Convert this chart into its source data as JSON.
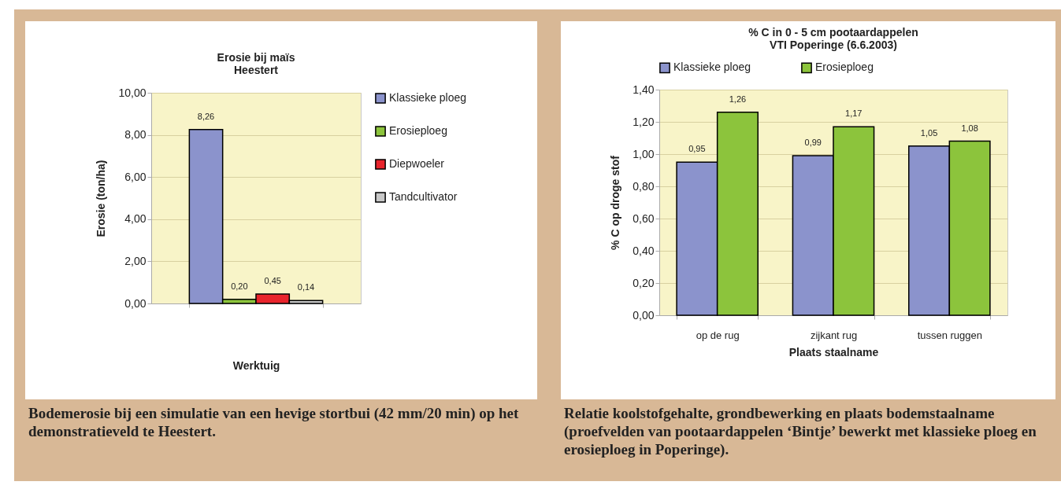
{
  "chart_data": [
    {
      "type": "bar",
      "title": "Erosie bij maïs\nHeestert",
      "xlabel": "Werktuig",
      "ylabel": "Erosie (ton/ha)",
      "categories": [
        null
      ],
      "series": [
        {
          "name": "Klassieke ploeg",
          "color": "#8b93cc",
          "values": [
            8.26
          ],
          "value_labels": [
            "8,26"
          ]
        },
        {
          "name": "Erosieploeg",
          "color": "#8cc43c",
          "values": [
            0.2
          ],
          "value_labels": [
            "0,20"
          ]
        },
        {
          "name": "Diepwoeler",
          "color": "#e8242c",
          "values": [
            0.45
          ],
          "value_labels": [
            "0,45"
          ]
        },
        {
          "name": "Tandcultivator",
          "color": "#c8c8c8",
          "values": [
            0.14
          ],
          "value_labels": [
            "0,14"
          ]
        }
      ],
      "ylim": [
        0,
        10
      ],
      "yticks": [
        {
          "value": 0,
          "label": "0,00"
        },
        {
          "value": 2,
          "label": "2,00"
        },
        {
          "value": 4,
          "label": "4,00"
        },
        {
          "value": 6,
          "label": "6,00"
        },
        {
          "value": 8,
          "label": "8,00"
        },
        {
          "value": 10,
          "label": "10,00"
        }
      ],
      "grid": "y",
      "legend": "right",
      "annotations": [
        "Bodemerosie bij een simulatie van een hevige stortbui (42 mm/20 min) op het demonstratieveld te Heestert."
      ]
    },
    {
      "type": "bar",
      "title": "% C in  0 - 5 cm pootaardappelen\nVTI Poperinge (6.6.2003)",
      "xlabel": "Plaats staalname",
      "ylabel": "% C op droge stof",
      "categories": [
        "op de rug",
        "zijkant rug",
        "tussen ruggen"
      ],
      "series": [
        {
          "name": "Klassieke ploeg",
          "color": "#8b93cc",
          "values": [
            0.95,
            0.99,
            1.05
          ],
          "value_labels": [
            "0,95",
            "0,99",
            "1,05"
          ]
        },
        {
          "name": "Erosieploeg",
          "color": "#8cc43c",
          "values": [
            1.26,
            1.17,
            1.08
          ],
          "value_labels": [
            "1,26",
            "1,17",
            "1,08"
          ]
        }
      ],
      "ylim": [
        0,
        1.4
      ],
      "yticks": [
        {
          "value": 0,
          "label": "0,00"
        },
        {
          "value": 0.2,
          "label": "0,20"
        },
        {
          "value": 0.4,
          "label": "0,40"
        },
        {
          "value": 0.6,
          "label": "0,60"
        },
        {
          "value": 0.8,
          "label": "0,80"
        },
        {
          "value": 1,
          "label": "1,00"
        },
        {
          "value": 1.2,
          "label": "1,20"
        },
        {
          "value": 1.4,
          "label": "1,40"
        }
      ],
      "grid": "y",
      "legend": "top",
      "annotations": [
        "Relatie koolstofgehalte, grondbewerking en plaats bodemstaalname (proefvelden van pootaardappelen ‘Bintje’ bewerkt met  klassieke ploeg en erosieploeg in Poperinge)."
      ]
    }
  ]
}
